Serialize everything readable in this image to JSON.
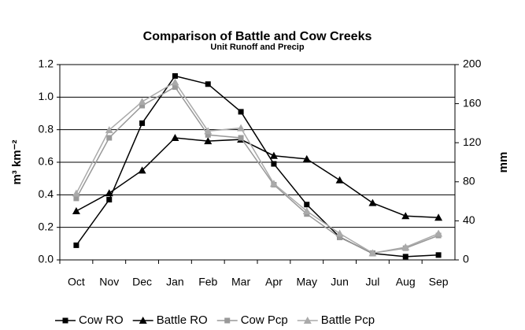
{
  "chart_data": {
    "type": "line",
    "title": "Comparison of Battle and Cow Creeks",
    "subtitle": "Unit Runoff and Precip",
    "ylabel": "m³ km⁻²",
    "y2label": "mm",
    "categories": [
      "Oct",
      "Nov",
      "Dec",
      "Jan",
      "Feb",
      "Mar",
      "Apr",
      "May",
      "Jun",
      "Jul",
      "Aug",
      "Sep"
    ],
    "ylim": [
      0,
      1.2
    ],
    "yticks": [
      {
        "value": 0,
        "label": "0.0"
      },
      0.2,
      0.4,
      0.6,
      0.8,
      {
        "value": 1,
        "label": "1.0"
      },
      1.2
    ],
    "y2lim": [
      0,
      200
    ],
    "y2ticks": [
      0,
      40,
      80,
      120,
      160,
      200
    ],
    "grid": true,
    "legend": "bottom",
    "series": [
      {
        "name": "Cow RO",
        "color": "#000000",
        "marker": "square",
        "values": [
          0.09,
          0.37,
          0.84,
          1.13,
          1.08,
          0.91,
          0.59,
          0.34,
          0.14,
          0.04,
          0.02,
          0.03
        ]
      },
      {
        "name": "Battle RO",
        "color": "#000000",
        "marker": "triangle",
        "values": [
          0.3,
          0.41,
          0.55,
          0.75,
          0.73,
          0.74,
          0.64,
          0.62,
          0.49,
          0.35,
          0.27,
          0.26
        ]
      },
      {
        "name": "Cow Pcp",
        "color": "#999999",
        "marker": "square",
        "axis": "y2",
        "values": [
          63,
          125,
          158,
          177,
          128,
          125,
          77,
          47,
          23,
          7,
          12,
          25
        ]
      },
      {
        "name": "Battle Pcp",
        "color": "#aaaaaa",
        "marker": "triangle",
        "axis": "y2",
        "values": [
          68,
          133,
          162,
          182,
          132,
          135,
          78,
          50,
          27,
          7,
          13,
          27
        ]
      }
    ]
  }
}
